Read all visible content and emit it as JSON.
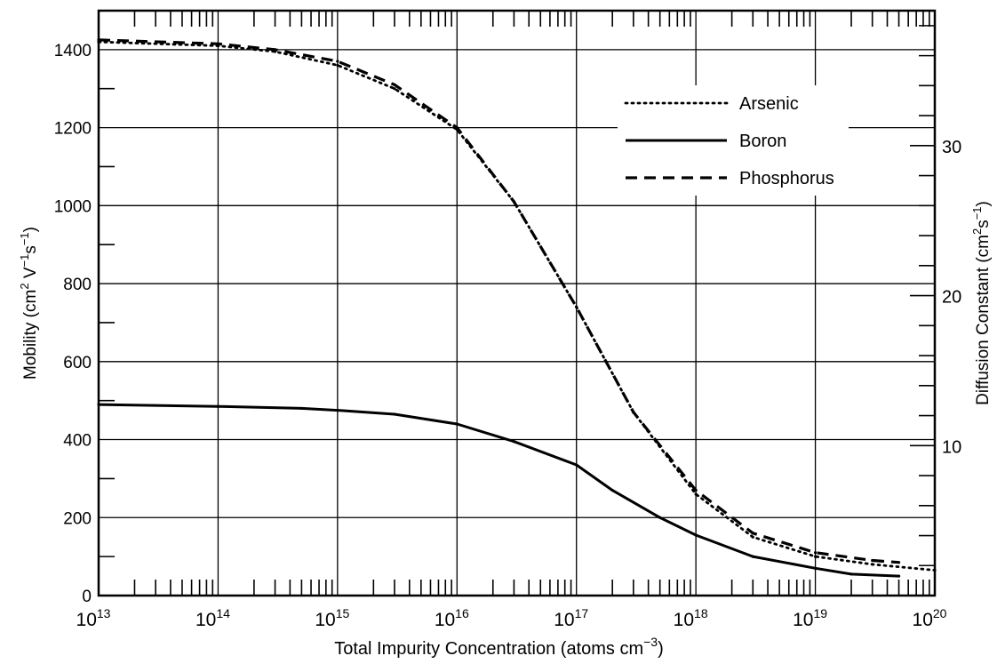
{
  "chart_data": {
    "type": "line",
    "xscale": "log",
    "xlim": [
      10000000000000.0,
      1e+20
    ],
    "ylim": [
      0,
      1500
    ],
    "y2lim": [
      0,
      39
    ],
    "grid": true,
    "legend_position": "top-right",
    "xlabel_parts": [
      "Total Impurity Concentration (atoms cm",
      "−3",
      ")"
    ],
    "ylabel_parts": [
      "Mobility (cm",
      "2",
      " V",
      "−1",
      "s",
      "−1",
      ")"
    ],
    "y2label_parts": [
      "Diffusion Constant (cm",
      "2",
      "s",
      "−1",
      ")"
    ],
    "x_tick_labels": [
      {
        "base": "10",
        "exp": "13",
        "value": 10000000000000.0
      },
      {
        "base": "10",
        "exp": "14",
        "value": 100000000000000.0
      },
      {
        "base": "10",
        "exp": "15",
        "value": 1000000000000000.0
      },
      {
        "base": "10",
        "exp": "16",
        "value": 1e+16
      },
      {
        "base": "10",
        "exp": "17",
        "value": 1e+17
      },
      {
        "base": "10",
        "exp": "18",
        "value": 1e+18
      },
      {
        "base": "10",
        "exp": "19",
        "value": 1e+19
      },
      {
        "base": "10",
        "exp": "20",
        "value": 1e+20
      }
    ],
    "y_tick_labels": [
      {
        "label": "0",
        "value": 0
      },
      {
        "label": "200",
        "value": 200
      },
      {
        "label": "400",
        "value": 400
      },
      {
        "label": "600",
        "value": 600
      },
      {
        "label": "800",
        "value": 800
      },
      {
        "label": "1000",
        "value": 1000
      },
      {
        "label": "1200",
        "value": 1200
      },
      {
        "label": "1400",
        "value": 1400
      }
    ],
    "y2_tick_labels": [
      {
        "label": "10",
        "value": 10
      },
      {
        "label": "20",
        "value": 20
      },
      {
        "label": "30",
        "value": 30
      }
    ],
    "series": [
      {
        "name": "Arsenic",
        "style": "dotted",
        "x": [
          10000000000000.0,
          100000000000000.0,
          300000000000000.0,
          1000000000000000.0,
          3000000000000000.0,
          1e+16,
          3e+16,
          1e+17,
          3e+17,
          1e+18,
          3e+18,
          1e+19,
          3e+19,
          1e+20
        ],
        "y": [
          1420,
          1410,
          1395,
          1360,
          1300,
          1195,
          1010,
          740,
          470,
          260,
          150,
          100,
          80,
          65
        ]
      },
      {
        "name": "Boron",
        "style": "solid",
        "x": [
          10000000000000.0,
          100000000000000.0,
          500000000000000.0,
          1000000000000000.0,
          3000000000000000.0,
          1e+16,
          3e+16,
          1e+17,
          2e+17,
          5e+17,
          1e+18,
          3e+18,
          1e+19,
          2e+19,
          5e+19
        ],
        "y": [
          490,
          485,
          480,
          475,
          465,
          440,
          395,
          335,
          270,
          200,
          155,
          100,
          70,
          55,
          50
        ]
      },
      {
        "name": "Phosphorus",
        "style": "dashed",
        "x": [
          10000000000000.0,
          100000000000000.0,
          300000000000000.0,
          1000000000000000.0,
          3000000000000000.0,
          1e+16,
          3e+16,
          1e+17,
          3e+17,
          1e+18,
          3e+18,
          1e+19,
          3e+19,
          5e+19
        ],
        "y": [
          1425,
          1415,
          1400,
          1370,
          1310,
          1200,
          1010,
          740,
          470,
          270,
          160,
          110,
          90,
          85
        ]
      }
    ]
  }
}
